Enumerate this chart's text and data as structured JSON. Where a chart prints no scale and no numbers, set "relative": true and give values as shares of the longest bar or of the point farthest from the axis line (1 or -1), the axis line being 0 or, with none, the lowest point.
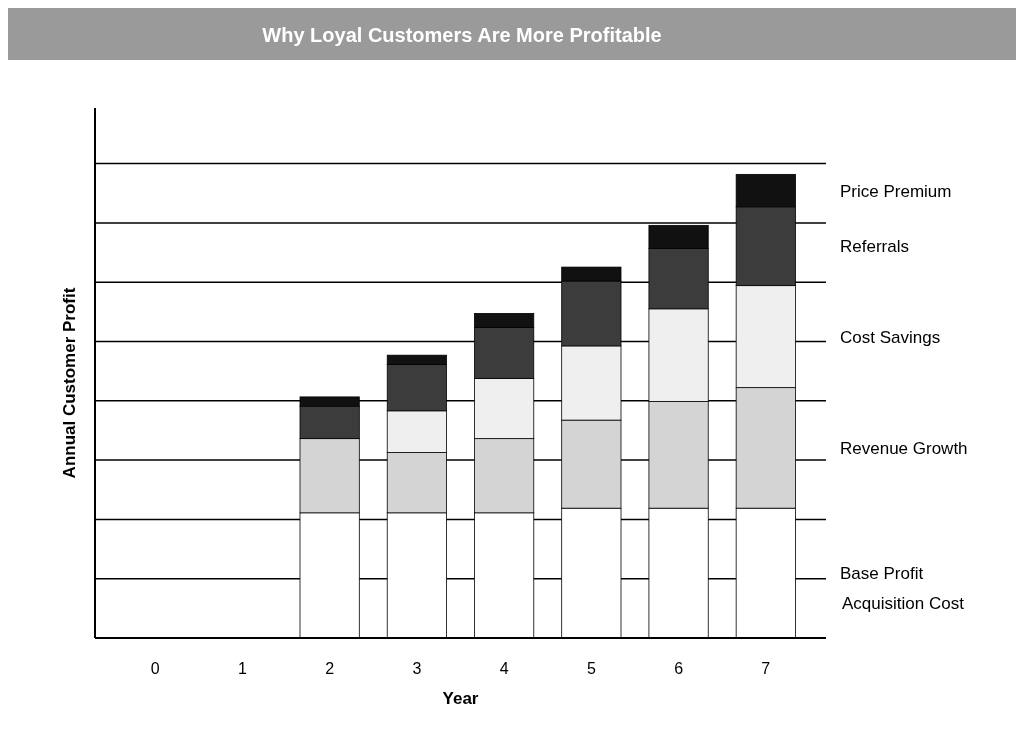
{
  "chart_data": {
    "type": "bar",
    "title": "Why Loyal Customers Are More Profitable",
    "xlabel": "Year",
    "ylabel": "Annual Customer Profit",
    "categories": [
      "0",
      "1",
      "2",
      "3",
      "4",
      "5",
      "6",
      "7"
    ],
    "relative": true,
    "stacked": true,
    "legend": "right",
    "series": [
      {
        "name": "Base Profit",
        "color": "#ffffff",
        "values": [
          null,
          null,
          0.27,
          0.27,
          0.27,
          0.28,
          0.28,
          0.28
        ]
      },
      {
        "name": "Revenue Growth",
        "color": "#d4d4d4",
        "values": [
          null,
          null,
          0.16,
          0.13,
          0.16,
          0.19,
          0.23,
          0.26
        ]
      },
      {
        "name": "Cost Savings",
        "color": "#efefef",
        "values": [
          null,
          null,
          0,
          0.09,
          0.13,
          0.16,
          0.2,
          0.22
        ]
      },
      {
        "name": "Referrals",
        "color": "#3c3c3c",
        "values": [
          null,
          null,
          0.07,
          0.1,
          0.11,
          0.14,
          0.13,
          0.17
        ]
      },
      {
        "name": "Price Premium",
        "color": "#111111",
        "values": [
          null,
          null,
          0.02,
          0.02,
          0.03,
          0.03,
          0.05,
          0.07
        ]
      }
    ],
    "annotations": [
      "Acquisition Cost"
    ],
    "grid": true
  }
}
